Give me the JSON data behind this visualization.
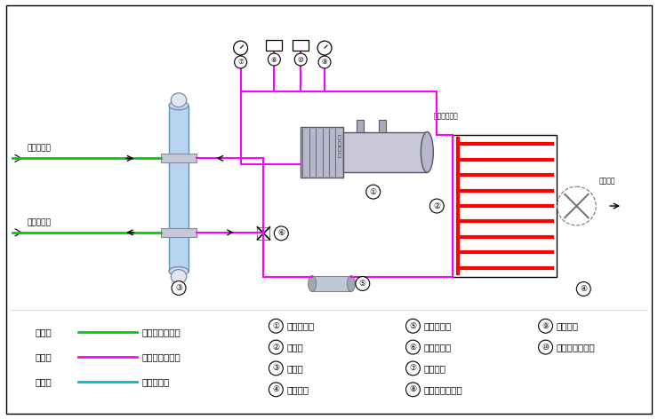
{
  "bg_color": "#ffffff",
  "pink": "#ff00ff",
  "green": "#00cc00",
  "cyan": "#00bbbb",
  "red": "#ff0000",
  "light_blue": "#b8d4f0",
  "items_c1": [
    [
      "①",
      "螺杆压缩机"
    ],
    [
      "②",
      "冷凝器"
    ],
    [
      "③",
      "蒸发器"
    ],
    [
      "④",
      "冷却风扇"
    ]
  ],
  "items_c2": [
    [
      "⑤",
      "干燥过滤器"
    ],
    [
      "⑥",
      "供液膨胀阀"
    ],
    [
      "⑦",
      "低压力表"
    ],
    [
      "⑧",
      "低压压力控制器"
    ]
  ],
  "items_c3": [
    [
      "⑨",
      "高压力表"
    ],
    [
      "⑩",
      "高压压力控制器"
    ]
  ],
  "legend": [
    {
      "cn": "绿色线",
      "line": "载冷剂循环回路",
      "color": "#00cc00"
    },
    {
      "cn": "红色线",
      "line": "制冷剂循环回路",
      "color": "#ff00ff"
    },
    {
      "cn": "蓝色线",
      "line": "水循环回路",
      "color": "#00bbbb"
    }
  ]
}
